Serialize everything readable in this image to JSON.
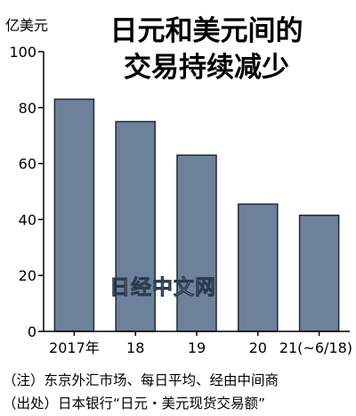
{
  "chart_data": {
    "type": "bar",
    "title_lines": [
      "日元和美元间的",
      "交易持续减少"
    ],
    "ylabel": "亿美元",
    "xlabel": "",
    "categories": [
      "2017年",
      "18",
      "19",
      "20",
      "21(~6/18)"
    ],
    "values": [
      83,
      75,
      63,
      45.5,
      41.5
    ],
    "ylim": [
      0,
      100
    ],
    "yticks": [
      0,
      20,
      40,
      60,
      80,
      100
    ],
    "grid": false,
    "bar_color": "#6e819a",
    "bar_edge_color": "#1e2b3a"
  },
  "watermark": "日经中文网",
  "notes": [
    "（注）东京外汇市场、每日平均、经由中间商",
    "（出处）日本银行“日元・美元现货交易额”"
  ]
}
